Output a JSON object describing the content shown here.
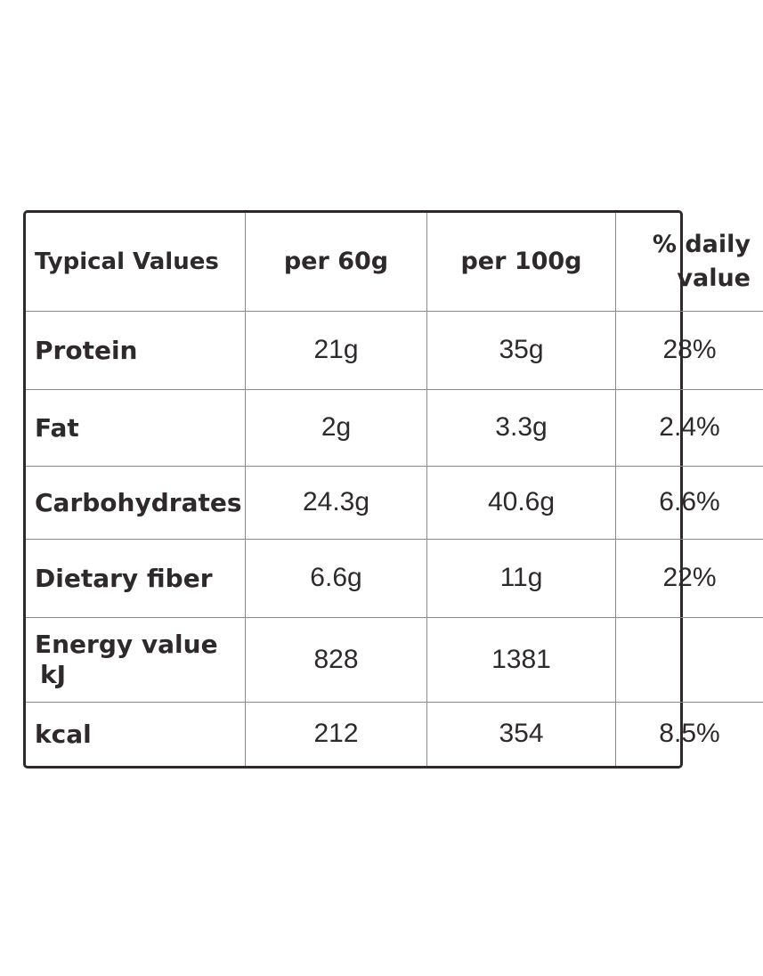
{
  "table": {
    "headers": {
      "label": "Typical Values",
      "per_60": "per 60g",
      "per_100": "per 100g",
      "daily_value_line1": "% daily",
      "daily_value_line2": "value"
    },
    "rows": [
      {
        "label": "Protein",
        "per_60": "21g",
        "per_100": "35g",
        "daily": "28%"
      },
      {
        "label": "Fat",
        "per_60": "2g",
        "per_100": "3.3g",
        "daily": "2.4%"
      },
      {
        "label": "Carbohydrates",
        "per_60": "24.3g",
        "per_100": "40.6g",
        "daily": "6.6%"
      },
      {
        "label": "Dietary fiber",
        "per_60": "6.6g",
        "per_100": "11g",
        "daily": "22%"
      },
      {
        "label": "Energy value",
        "unit": "kJ",
        "per_60": "828",
        "per_100": "1381",
        "daily": ""
      },
      {
        "label": "kcal",
        "per_60": "212",
        "per_100": "354",
        "daily": "8.5%"
      }
    ]
  }
}
